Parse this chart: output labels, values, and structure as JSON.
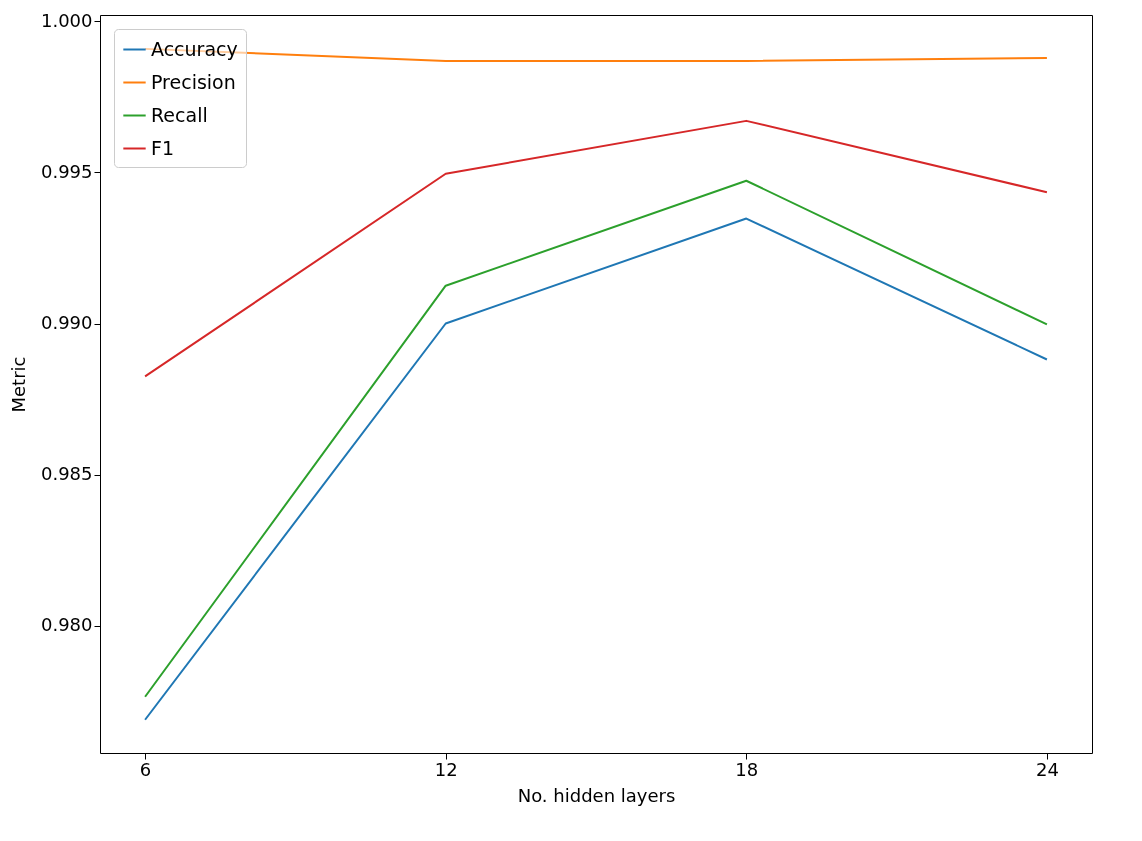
{
  "chart_data": {
    "type": "line",
    "xlabel": "No. hidden layers",
    "ylabel": "Metric",
    "x": [
      6,
      12,
      18,
      24
    ],
    "series": [
      {
        "name": "Accuracy",
        "color": "#1f77b4",
        "values": [
          0.9769,
          0.99,
          0.99347,
          0.98881
        ]
      },
      {
        "name": "Precision",
        "color": "#ff7f0e",
        "values": [
          0.99908,
          0.99868,
          0.99868,
          0.99878
        ]
      },
      {
        "name": "Recall",
        "color": "#2ca02c",
        "values": [
          0.97766,
          0.99125,
          0.99472,
          0.98997
        ]
      },
      {
        "name": "F1",
        "color": "#d62728",
        "values": [
          0.98825,
          0.99495,
          0.9967,
          0.99434
        ]
      }
    ],
    "xlim": [
      5.1,
      24.9
    ],
    "xticks": [
      6,
      12,
      18,
      24
    ],
    "ylim": [
      0.9758,
      1.0002
    ],
    "yticks": [
      {
        "value": 0.98,
        "label": "0.980"
      },
      {
        "value": 0.985,
        "label": "0.985"
      },
      {
        "value": 0.99,
        "label": "0.990"
      },
      {
        "value": 0.995,
        "label": "0.995"
      },
      {
        "value": 1.0,
        "label": "1.000"
      }
    ],
    "legend": "top left",
    "grid": false,
    "marker": "none",
    "line_style": "solid"
  }
}
